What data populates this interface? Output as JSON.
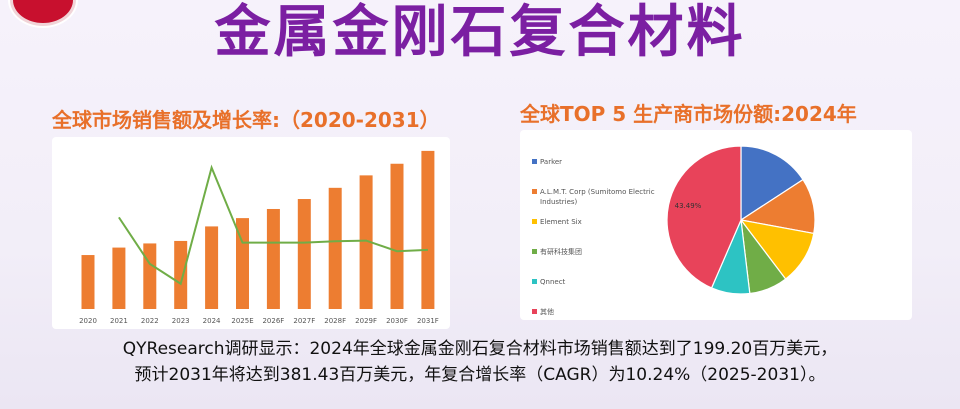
{
  "header": {
    "title": "金属金刚石复合材料"
  },
  "bar_chart_title": "全球市场销售额及增长率:（2020-2031）",
  "pie_chart_title": "全球TOP 5 生产商市场份额:2024年",
  "footer": {
    "line1": "QYResearch调研显示：2024年全球金属金刚石复合材料市场销售额达到了199.20百万美元，",
    "line2": "预计2031年将达到381.43百万美元，年复合增长率（CAGR）为10.24%（2025-2031）。"
  },
  "colors": {
    "title": "#7b1fa2",
    "subtitle": "#e8702a",
    "bar": "#ed7d31",
    "growth_line": "#70ad47"
  },
  "chart_data": [
    {
      "type": "bar",
      "title": "全球市场销售额及增长率:（2020-2031）",
      "categories": [
        "2020",
        "2021",
        "2022",
        "2023",
        "2024",
        "2025E",
        "2026F",
        "2027F",
        "2028F",
        "2029F",
        "2030F",
        "2031F"
      ],
      "series": [
        {
          "values": [
            130,
            148,
            158,
            164,
            199,
            219,
            241,
            265,
            292,
            322,
            350,
            381
          ]
        },
        {
          "values": [
            null,
            13.8,
            6.8,
            3.8,
            21.3,
            10.0,
            10.0,
            10.0,
            10.2,
            10.3,
            8.7,
            8.9
          ]
        }
      ],
      "bar_ylim": [
        0,
        400
      ],
      "line_ylim": [
        0,
        25
      ],
      "grid": false
    },
    {
      "type": "pie",
      "title": "全球TOP 5 生产商市场份额:2024年",
      "labels": [
        "Parker",
        "A.L.M.T. Corp (Sumitomo Electric Industries)",
        "Element Six",
        "有研科技集团",
        "Qnnect",
        "其他"
      ],
      "legend_lines": [
        [
          "Parker"
        ],
        [
          "A.L.M.T. Corp (Sumitomo Electric",
          "Industries)"
        ],
        [
          "Element Six"
        ],
        [
          "有研科技集团"
        ],
        [
          "Qnnect"
        ],
        [
          "其他"
        ]
      ],
      "values": [
        15.8,
        12.1,
        11.8,
        8.4,
        8.4,
        43.49
      ],
      "colors": [
        "#4472c4",
        "#ed7d31",
        "#ffc000",
        "#70ad47",
        "#2dc3c3",
        "#e8435a"
      ],
      "data_label": "43.49%",
      "legend_position": "left"
    }
  ]
}
